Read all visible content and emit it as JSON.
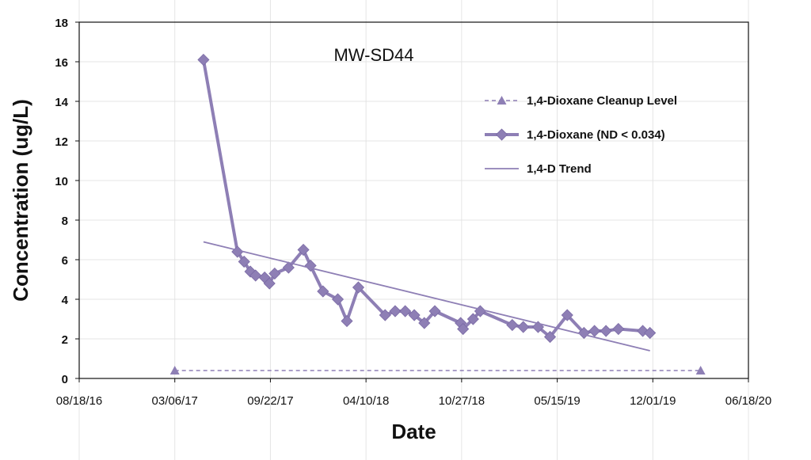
{
  "chart_data": {
    "type": "line",
    "title": "MW-SD44",
    "xlabel": "Date",
    "ylabel": "Concentration (ug/L)",
    "ylim": [
      0,
      18
    ],
    "y_ticks": [
      "0",
      "2",
      "4",
      "6",
      "8",
      "10",
      "12",
      "14",
      "16",
      "18"
    ],
    "x_ticks": [
      "08/18/16",
      "03/06/17",
      "09/22/17",
      "04/10/18",
      "10/27/18",
      "05/15/19",
      "12/01/19",
      "06/18/20"
    ],
    "xlim": [
      "2016-08-18",
      "2020-06-18"
    ],
    "grid": true,
    "legend_position": "top-right",
    "colors": {
      "series": "#8e7fb5",
      "trend": "#8e7fb5",
      "grid": "#e4e4e4",
      "axis": "#111111"
    },
    "series": [
      {
        "name": "1,4-Dioxane Cleanup Level",
        "style": "dashed-triangle",
        "x": [
          "2017-03-06",
          "2020-03-10"
        ],
        "y": [
          0.4,
          0.4
        ]
      },
      {
        "name": "1,4-Dioxane (ND < 0.034)",
        "style": "thick-diamond",
        "x": [
          "2017-05-05",
          "2017-07-15",
          "2017-07-29",
          "2017-08-11",
          "2017-08-22",
          "2017-09-10",
          "2017-09-20",
          "2017-10-01",
          "2017-10-30",
          "2017-11-30",
          "2017-12-15",
          "2018-01-10",
          "2018-02-10",
          "2018-03-01",
          "2018-03-25",
          "2018-05-20",
          "2018-06-10",
          "2018-07-01",
          "2018-07-20",
          "2018-08-10",
          "2018-09-01",
          "2018-10-25",
          "2018-10-30",
          "2018-11-20",
          "2018-12-05",
          "2019-02-10",
          "2019-03-05",
          "2019-04-05",
          "2019-04-30",
          "2019-06-05",
          "2019-07-10",
          "2019-08-01",
          "2019-08-25",
          "2019-09-20",
          "2019-11-10",
          "2019-11-25"
        ],
        "y": [
          16.1,
          6.4,
          5.9,
          5.4,
          5.2,
          5.1,
          4.8,
          5.3,
          5.6,
          6.5,
          5.7,
          4.4,
          4.0,
          2.9,
          4.6,
          3.2,
          3.4,
          3.4,
          3.2,
          2.8,
          3.4,
          2.8,
          2.5,
          3.0,
          3.4,
          2.7,
          2.6,
          2.6,
          2.1,
          3.2,
          2.3,
          2.4,
          2.4,
          2.5,
          2.4,
          2.3
        ]
      },
      {
        "name": "1,4-D Trend",
        "style": "thin-line",
        "x": [
          "2017-05-05",
          "2019-11-25"
        ],
        "y": [
          6.9,
          1.4
        ]
      }
    ]
  }
}
